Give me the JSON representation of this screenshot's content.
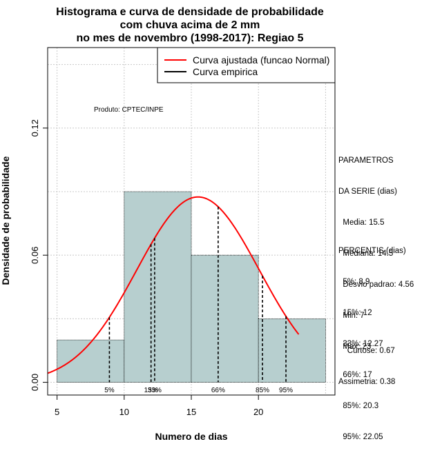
{
  "chart_data": {
    "type": "bar",
    "title_lines": [
      "Histograma e curva de densidade de probabilidade",
      "com chuva acima de 2 mm",
      "no mes de novembro (1998-2017): Regiao 5"
    ],
    "xlabel": "Numero de dias",
    "ylabel": "Densidade de probabilidade",
    "xlim": [
      4.3,
      25.7
    ],
    "ylim": [
      -0.006,
      0.158
    ],
    "x_ticks": [
      5,
      10,
      15,
      20
    ],
    "y_ticks": [
      0.0,
      0.06,
      0.12
    ],
    "y_tick_labels": [
      "0.00",
      "0.06",
      "0.12"
    ],
    "grid": true,
    "bins": [
      {
        "start": 5,
        "end": 10,
        "density": 0.02
      },
      {
        "start": 10,
        "end": 15,
        "density": 0.09
      },
      {
        "start": 15,
        "end": 20,
        "density": 0.06
      },
      {
        "start": 20,
        "end": 25,
        "density": 0.03
      }
    ],
    "bar_color": "#b7cfcf",
    "normal_curve": {
      "mean": 15.5,
      "sd": 4.56,
      "x_from": 4.3,
      "x_to": 23,
      "color": "#ff0000"
    },
    "percentiles": [
      {
        "label": "5%",
        "x": 8.9
      },
      {
        "label": "15%",
        "x": 12
      },
      {
        "label": "33%",
        "x": 12.27
      },
      {
        "label": "66%",
        "x": 17
      },
      {
        "label": "85%",
        "x": 20.3
      },
      {
        "label": "95%",
        "x": 22.05
      }
    ],
    "percentile_marker_labels": [
      "5%",
      "15%",
      "33%",
      "66%",
      "85%",
      "95%"
    ],
    "legend": {
      "position": "top-right",
      "entries": [
        {
          "label": "Curva ajustada (funcao Normal)",
          "color": "#ff0000"
        },
        {
          "label": "Curva empirica",
          "color": "#000000"
        }
      ]
    },
    "annotation": "Produto: CPTEC/INPE"
  },
  "stats_panel": {
    "parametros_lines": [
      "PARAMETROS",
      "DA SERIE (dias)",
      "  Media: 15.5",
      "  Mediana: 14.5",
      "  Desvio padrao: 4.56",
      "  Min: 7",
      "  Max: 23"
    ],
    "percentis_lines": [
      "PERCENTIS (dias)",
      "  5%: 8.9",
      "  15%: 12",
      "  33%: 12.27",
      "  66%: 17",
      "  85%: 20.3",
      "  95%: 22.05"
    ],
    "shape_lines": [
      "    Curtose: 0.67",
      "Assimetria: 0.38"
    ]
  }
}
